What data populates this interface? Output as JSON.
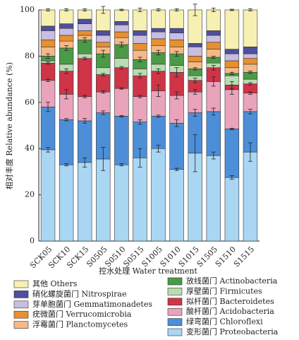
{
  "chart_data": {
    "type": "stacked_bar",
    "y_label": "相对丰度 Relative abundance (%)",
    "x_label": "控水处理 Water treatment",
    "categories": [
      "SCK05",
      "SCK10",
      "SCK15",
      "S0505",
      "S0510",
      "S0515",
      "S1005",
      "S1010",
      "S1015",
      "S1505",
      "S1510",
      "S1515"
    ],
    "ylim": [
      0,
      100
    ],
    "yticks": [
      0,
      20,
      40,
      60,
      80,
      100
    ],
    "series": [
      {
        "name": "变形菌门 Proteobacteria",
        "color": "#a9d6f2",
        "values": [
          39.5,
          33,
          34,
          35.5,
          33,
          36,
          40,
          31,
          38,
          37,
          27.5,
          38.5
        ],
        "errors": [
          1,
          0.5,
          2,
          5,
          0.5,
          4,
          1.5,
          0.5,
          8,
          1.5,
          0.8,
          4
        ]
      },
      {
        "name": "绿弯菌门 Chloroflexi",
        "color": "#4c8fd8",
        "values": [
          18.5,
          19.5,
          18,
          20,
          21,
          15.5,
          14,
          20,
          17.5,
          19,
          21,
          17.5
        ],
        "errors": [
          2,
          0.5,
          1,
          0.8,
          0.3,
          1,
          0.5,
          1.5,
          1.5,
          1.5,
          0.3,
          1
        ]
      },
      {
        "name": "酸杆菌门 Acidobacteria",
        "color": "#e9a3bb",
        "values": [
          11.5,
          11,
          10.5,
          9,
          12,
          11,
          11,
          12,
          9,
          13,
          17,
          8
        ],
        "errors": [
          0.5,
          2,
          0.5,
          0.5,
          0.3,
          0.5,
          2.5,
          1.5,
          1,
          2,
          2,
          0.5
        ]
      },
      {
        "name": "拟杆菌门 Bacteroidetes",
        "color": "#cf3547",
        "values": [
          7.5,
          10,
          16.5,
          7.5,
          9,
          9,
          8.5,
          10,
          5,
          6,
          2,
          4
        ],
        "errors": [
          0.5,
          1,
          0.5,
          0.5,
          0.5,
          1,
          1,
          2,
          1,
          1,
          1.5,
          0.5
        ]
      },
      {
        "name": "厚壁菌门 Firmicutes",
        "color": "#b9dcb1",
        "values": [
          1,
          3,
          2,
          3,
          4,
          3,
          3,
          3,
          2,
          2,
          4,
          2
        ]
      },
      {
        "name": "放线菌门 Actinobacteria",
        "color": "#4b9a48",
        "values": [
          2,
          7,
          6,
          6,
          6,
          4,
          5,
          5,
          3,
          2.5,
          1,
          3
        ],
        "errors": [
          1,
          1,
          1,
          1.5,
          1,
          1,
          1,
          1,
          0.5,
          0.5,
          0.5,
          0.5
        ]
      },
      {
        "name": "浮霉菌门 Planctomycetes",
        "color": "#f3b989",
        "values": [
          4,
          3,
          2,
          3,
          3,
          4,
          3,
          3,
          3,
          3.5,
          2.5,
          3.5
        ]
      },
      {
        "name": "疣微菌门 Verrucomicrobia",
        "color": "#e88f2e",
        "values": [
          3,
          2.5,
          2,
          2,
          2.5,
          3,
          3,
          3,
          2.5,
          3,
          3,
          2.5
        ]
      },
      {
        "name": "芽单胞菌门 Gemmatimonadetes",
        "color": "#c9bde0",
        "values": [
          4,
          3,
          3,
          3,
          3,
          3.5,
          3,
          3,
          4,
          3,
          3,
          2
        ]
      },
      {
        "name": "硝化螺旋菌门 Nitrospirae",
        "color": "#4f4f9e",
        "values": [
          2,
          2,
          2,
          2,
          1.5,
          2,
          1.5,
          2,
          1.5,
          2,
          2,
          3
        ]
      },
      {
        "name": "其他 Others",
        "color": "#f6f0b2",
        "values": [
          7,
          6,
          4,
          9,
          5,
          9,
          8,
          8,
          14.5,
          9,
          17,
          16
        ],
        "errors": [
          0.5,
          0.5,
          0.5,
          1.5,
          0.3,
          0.8,
          0.5,
          0.5,
          2.5,
          0.8,
          0.3,
          0.5
        ]
      }
    ]
  }
}
